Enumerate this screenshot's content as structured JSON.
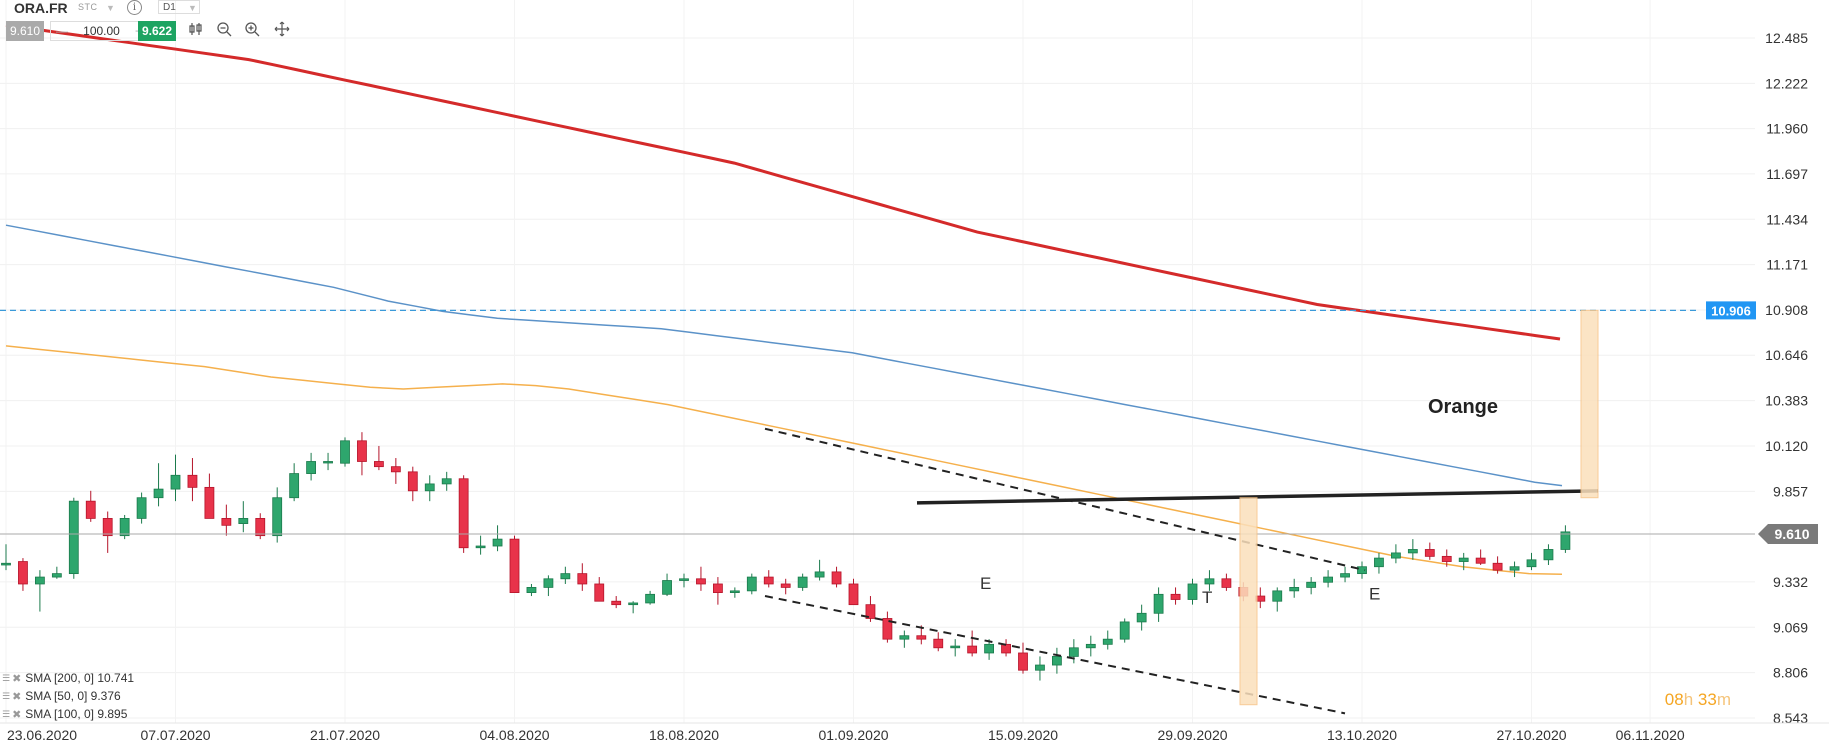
{
  "header": {
    "symbol": "ORA.FR",
    "venue": "STC",
    "info_icon": "info-icon",
    "timeframe": "D1",
    "sell_price": "9.610",
    "minus": "—",
    "quantity": "100.00",
    "plus": "+",
    "buy_price": "9.622",
    "tools": [
      "chart-type-icon",
      "zoom-out-icon",
      "zoom-in-icon",
      "move-icon"
    ]
  },
  "legend": [
    {
      "label": "SMA [200, 0] 10.741"
    },
    {
      "label": "SMA [50, 0] 9.376"
    },
    {
      "label": "SMA [100, 0] 9.895"
    }
  ],
  "countdown": {
    "hours": "08",
    "h": "h",
    "minutes": "33",
    "m": "m"
  },
  "chart_data": {
    "type": "candlestick",
    "symbol": "ORA.FR",
    "timeframe": "D1",
    "ylim": [
      8.5,
      12.56
    ],
    "y_ticks": [
      8.543,
      8.806,
      9.069,
      9.332,
      9.61,
      9.857,
      10.12,
      10.383,
      10.646,
      10.908,
      11.171,
      11.434,
      11.697,
      11.96,
      12.222,
      12.485
    ],
    "x_tick_labels": [
      "23.06.2020",
      "07.07.2020",
      "21.07.2020",
      "04.08.2020",
      "18.08.2020",
      "01.09.2020",
      "15.09.2020",
      "29.09.2020",
      "13.10.2020",
      "27.10.2020",
      "06.11.2020"
    ],
    "x_tick_index": [
      0,
      10,
      20,
      30,
      40,
      50,
      60,
      70,
      80,
      90,
      97
    ],
    "candle_count": 93,
    "ohlc": [
      [
        9.43,
        9.55,
        9.4,
        9.44
      ],
      [
        9.45,
        9.47,
        9.28,
        9.32
      ],
      [
        9.32,
        9.4,
        9.16,
        9.36
      ],
      [
        9.36,
        9.42,
        9.35,
        9.38
      ],
      [
        9.38,
        9.82,
        9.35,
        9.8
      ],
      [
        9.8,
        9.86,
        9.68,
        9.7
      ],
      [
        9.7,
        9.74,
        9.5,
        9.6
      ],
      [
        9.6,
        9.72,
        9.58,
        9.7
      ],
      [
        9.7,
        9.85,
        9.67,
        9.82
      ],
      [
        9.82,
        10.02,
        9.77,
        9.87
      ],
      [
        9.87,
        10.07,
        9.8,
        9.95
      ],
      [
        9.95,
        10.05,
        9.8,
        9.88
      ],
      [
        9.88,
        9.96,
        9.74,
        9.7
      ],
      [
        9.7,
        9.78,
        9.6,
        9.66
      ],
      [
        9.67,
        9.8,
        9.62,
        9.7
      ],
      [
        9.7,
        9.73,
        9.58,
        9.6
      ],
      [
        9.6,
        9.88,
        9.56,
        9.82
      ],
      [
        9.82,
        10.02,
        9.8,
        9.96
      ],
      [
        9.96,
        10.08,
        9.92,
        10.03
      ],
      [
        10.03,
        10.08,
        9.98,
        10.03
      ],
      [
        10.02,
        10.17,
        10.0,
        10.15
      ],
      [
        10.15,
        10.2,
        9.95,
        10.03
      ],
      [
        10.03,
        10.12,
        9.98,
        10.0
      ],
      [
        10.0,
        10.05,
        9.9,
        9.97
      ],
      [
        9.97,
        10.0,
        9.8,
        9.86
      ],
      [
        9.86,
        9.95,
        9.8,
        9.9
      ],
      [
        9.9,
        9.97,
        9.86,
        9.93
      ],
      [
        9.93,
        9.95,
        9.5,
        9.53
      ],
      [
        9.53,
        9.6,
        9.49,
        9.54
      ],
      [
        9.54,
        9.66,
        9.51,
        9.58
      ],
      [
        9.58,
        9.6,
        9.27,
        9.27
      ],
      [
        9.27,
        9.32,
        9.25,
        9.3
      ],
      [
        9.3,
        9.37,
        9.25,
        9.35
      ],
      [
        9.35,
        9.42,
        9.32,
        9.38
      ],
      [
        9.38,
        9.44,
        9.28,
        9.32
      ],
      [
        9.32,
        9.36,
        9.22,
        9.22
      ],
      [
        9.22,
        9.25,
        9.18,
        9.2
      ],
      [
        9.2,
        9.22,
        9.15,
        9.21
      ],
      [
        9.21,
        9.28,
        9.2,
        9.26
      ],
      [
        9.26,
        9.38,
        9.25,
        9.34
      ],
      [
        9.34,
        9.38,
        9.3,
        9.35
      ],
      [
        9.35,
        9.42,
        9.28,
        9.32
      ],
      [
        9.32,
        9.36,
        9.2,
        9.27
      ],
      [
        9.27,
        9.3,
        9.24,
        9.28
      ],
      [
        9.28,
        9.38,
        9.26,
        9.36
      ],
      [
        9.36,
        9.4,
        9.3,
        9.32
      ],
      [
        9.32,
        9.35,
        9.26,
        9.3
      ],
      [
        9.3,
        9.38,
        9.28,
        9.36
      ],
      [
        9.36,
        9.46,
        9.34,
        9.39
      ],
      [
        9.39,
        9.42,
        9.3,
        9.32
      ],
      [
        9.32,
        9.35,
        9.2,
        9.2
      ],
      [
        9.2,
        9.25,
        9.1,
        9.12
      ],
      [
        9.12,
        9.16,
        8.98,
        9.0
      ],
      [
        9.0,
        9.05,
        8.95,
        9.02
      ],
      [
        9.02,
        9.08,
        8.97,
        9.0
      ],
      [
        9.0,
        9.04,
        8.93,
        8.95
      ],
      [
        8.95,
        9.0,
        8.9,
        8.96
      ],
      [
        8.96,
        9.05,
        8.9,
        8.92
      ],
      [
        8.92,
        9.0,
        8.88,
        8.97
      ],
      [
        8.97,
        9.0,
        8.9,
        8.92
      ],
      [
        8.92,
        8.98,
        8.8,
        8.82
      ],
      [
        8.82,
        8.9,
        8.76,
        8.85
      ],
      [
        8.85,
        8.95,
        8.8,
        8.9
      ],
      [
        8.9,
        9.0,
        8.86,
        8.95
      ],
      [
        8.95,
        9.02,
        8.9,
        8.97
      ],
      [
        8.97,
        9.05,
        8.94,
        9.0
      ],
      [
        9.0,
        9.12,
        8.98,
        9.1
      ],
      [
        9.1,
        9.2,
        9.05,
        9.15
      ],
      [
        9.15,
        9.3,
        9.1,
        9.26
      ],
      [
        9.26,
        9.3,
        9.2,
        9.23
      ],
      [
        9.23,
        9.35,
        9.2,
        9.32
      ],
      [
        9.32,
        9.4,
        9.28,
        9.35
      ],
      [
        9.35,
        9.38,
        9.28,
        9.3
      ],
      [
        9.3,
        9.33,
        9.22,
        9.25
      ],
      [
        9.25,
        9.3,
        9.18,
        9.22
      ],
      [
        9.22,
        9.3,
        9.16,
        9.28
      ],
      [
        9.28,
        9.35,
        9.24,
        9.3
      ],
      [
        9.3,
        9.36,
        9.26,
        9.33
      ],
      [
        9.33,
        9.4,
        9.3,
        9.36
      ],
      [
        9.36,
        9.42,
        9.33,
        9.38
      ],
      [
        9.38,
        9.45,
        9.35,
        9.42
      ],
      [
        9.42,
        9.5,
        9.38,
        9.47
      ],
      [
        9.47,
        9.55,
        9.44,
        9.5
      ],
      [
        9.5,
        9.58,
        9.46,
        9.52
      ],
      [
        9.52,
        9.56,
        9.46,
        9.48
      ],
      [
        9.48,
        9.52,
        9.42,
        9.45
      ],
      [
        9.45,
        9.5,
        9.4,
        9.47
      ],
      [
        9.47,
        9.52,
        9.43,
        9.44
      ],
      [
        9.44,
        9.48,
        9.38,
        9.4
      ],
      [
        9.4,
        9.45,
        9.36,
        9.42
      ],
      [
        9.42,
        9.5,
        9.4,
        9.46
      ],
      [
        9.46,
        9.55,
        9.43,
        9.52
      ],
      [
        9.52,
        9.66,
        9.5,
        9.622
      ]
    ],
    "sma200": [
      12.56,
      12.54,
      12.52,
      12.5,
      12.48,
      12.46,
      12.44,
      12.42,
      12.4,
      12.38,
      12.36,
      12.33,
      12.3,
      12.27,
      12.24,
      12.21,
      12.18,
      12.15,
      12.12,
      12.09,
      12.06,
      12.03,
      12.0,
      11.97,
      11.94,
      11.91,
      11.88,
      11.85,
      11.82,
      11.79,
      11.76,
      11.72,
      11.68,
      11.64,
      11.6,
      11.56,
      11.52,
      11.48,
      11.44,
      11.4,
      11.36,
      11.33,
      11.3,
      11.27,
      11.24,
      11.21,
      11.18,
      11.15,
      11.12,
      11.09,
      11.06,
      11.03,
      11.0,
      10.97,
      10.94,
      10.92,
      10.9,
      10.88,
      10.86,
      10.84,
      10.82,
      10.8,
      10.78,
      10.76,
      10.74
    ],
    "sma100": [
      11.4,
      11.37,
      11.34,
      11.31,
      11.28,
      11.25,
      11.22,
      11.19,
      11.16,
      11.13,
      11.1,
      11.07,
      11.04,
      11.0,
      10.96,
      10.93,
      10.9,
      10.88,
      10.86,
      10.85,
      10.84,
      10.83,
      10.82,
      10.81,
      10.8,
      10.78,
      10.76,
      10.74,
      10.72,
      10.7,
      10.68,
      10.66,
      10.63,
      10.6,
      10.57,
      10.54,
      10.51,
      10.48,
      10.45,
      10.42,
      10.39,
      10.36,
      10.33,
      10.3,
      10.27,
      10.24,
      10.21,
      10.18,
      10.15,
      10.12,
      10.09,
      10.06,
      10.03,
      10.0,
      9.97,
      9.94,
      9.91,
      9.89
    ],
    "sma50": [
      10.7,
      10.68,
      10.66,
      10.64,
      10.62,
      10.6,
      10.58,
      10.55,
      10.52,
      10.5,
      10.48,
      10.46,
      10.45,
      10.46,
      10.47,
      10.48,
      10.47,
      10.45,
      10.42,
      10.39,
      10.36,
      10.32,
      10.28,
      10.24,
      10.2,
      10.16,
      10.12,
      10.08,
      10.04,
      10.0,
      9.96,
      9.92,
      9.88,
      9.84,
      9.8,
      9.76,
      9.72,
      9.68,
      9.64,
      9.6,
      9.56,
      9.52,
      9.48,
      9.45,
      9.42,
      9.4,
      9.38,
      9.376
    ],
    "horizontal_line": 10.906,
    "resistance_line": 9.857,
    "last_price": 9.61,
    "annotations": [
      "Orange",
      "E",
      "T",
      "E"
    ],
    "price_labels": {
      "horizontal": "10.906",
      "last": "9.610"
    }
  }
}
